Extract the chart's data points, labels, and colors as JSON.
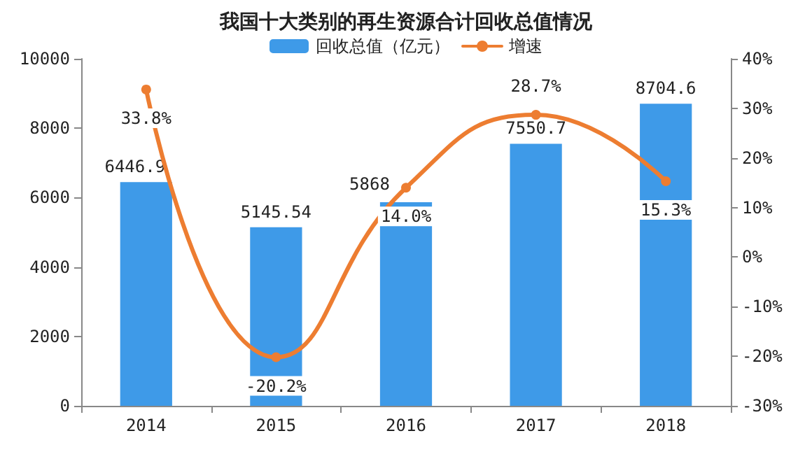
{
  "chart_data": {
    "type": "bar",
    "title": "我国十大类别的再生资源合计回收总值情况",
    "categories": [
      "2014",
      "2015",
      "2016",
      "2017",
      "2018"
    ],
    "series": [
      {
        "name": "回收总值（亿元）",
        "type": "bar",
        "color": "#3e9ae8",
        "values": [
          6446.9,
          5145.54,
          5868,
          7550.7,
          8704.6
        ],
        "value_labels": [
          "6446.9",
          "5145.54",
          "5868",
          "7550.7",
          "8704.6"
        ]
      },
      {
        "name": "增速",
        "type": "line",
        "axis": "y2",
        "color": "#ed7d31",
        "values": [
          33.8,
          -20.2,
          14.0,
          28.7,
          15.3
        ],
        "value_labels": [
          "33.8%",
          "-20.2%",
          "14.0%",
          "28.7%",
          "15.3%"
        ]
      }
    ],
    "ylim": [
      0,
      10000
    ],
    "yticks": [
      0,
      2000,
      4000,
      6000,
      8000,
      10000
    ],
    "y2lim": [
      -30,
      40
    ],
    "y2ticks": [
      {
        "value": -30,
        "label": "-30%"
      },
      {
        "value": -20,
        "label": "-20%"
      },
      {
        "value": -10,
        "label": "-10%"
      },
      {
        "value": 0,
        "label": "0%"
      },
      {
        "value": 10,
        "label": "10%"
      },
      {
        "value": 20,
        "label": "20%"
      },
      {
        "value": 30,
        "label": "30%"
      },
      {
        "value": 40,
        "label": "40%"
      }
    ],
    "grid": false,
    "legend": "top",
    "marker": "circle",
    "line_style": "solid"
  }
}
